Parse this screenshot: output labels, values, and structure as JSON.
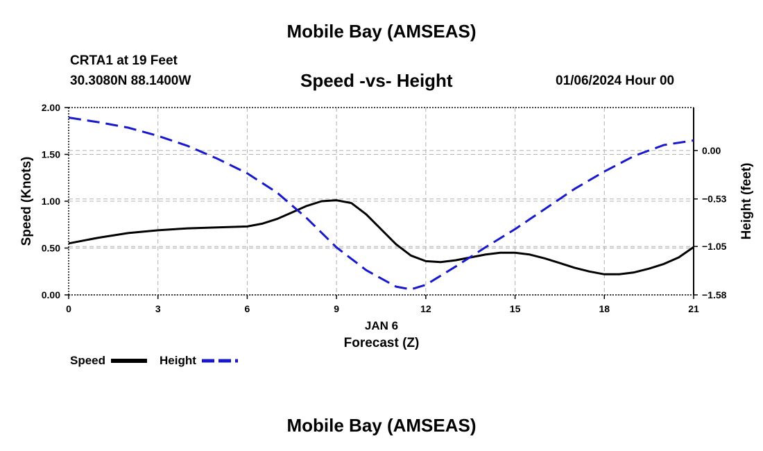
{
  "header": {
    "title": "Mobile Bay (AMSEAS)",
    "station": "CRTA1 at 19 Feet",
    "coords": "30.3080N  88.1400W",
    "subtitle": "Speed -vs- Height",
    "datetime": "01/06/2024 Hour 00"
  },
  "footer": {
    "title": "Mobile Bay (AMSEAS)"
  },
  "colors": {
    "speed": "#000000",
    "height": "#1818cc",
    "grid": "#b0b0b0"
  },
  "chart_data": {
    "type": "line",
    "title": "Speed -vs- Height",
    "xlabel_date": "JAN 6",
    "xlabel": "Forecast (Z)",
    "ylabel_left": "Speed (Knots)",
    "ylabel_right": "Height (feet)",
    "xlim": [
      0,
      21
    ],
    "ylim_left": [
      0,
      2.0
    ],
    "ylim_right": [
      -1.58,
      0.47
    ],
    "x_ticks": [
      0,
      3,
      6,
      9,
      12,
      15,
      18,
      21
    ],
    "x_tick_labels": [
      "0",
      "3",
      "6",
      "9",
      "12",
      "15",
      "18",
      "21"
    ],
    "y_left_ticks": [
      0,
      0.5,
      1.0,
      1.5,
      2.0
    ],
    "y_left_tick_labels": [
      "0.00",
      "0.50",
      "1.00",
      "1.50",
      "2.00"
    ],
    "y_right_ticks": [
      -1.58,
      -1.05,
      -0.53,
      0.0
    ],
    "y_right_tick_labels": [
      "−1.58",
      "−1.05",
      "−0.53",
      "0.00"
    ],
    "legend": [
      "Speed",
      "Height"
    ],
    "series": [
      {
        "name": "Speed",
        "axis": "left",
        "style": "solid",
        "x": [
          0,
          1,
          2,
          3,
          4,
          5,
          6,
          6.5,
          7,
          7.5,
          8,
          8.5,
          9,
          9.5,
          10,
          10.5,
          11,
          11.5,
          12,
          12.5,
          13,
          13.5,
          14,
          14.5,
          15,
          15.5,
          16,
          16.5,
          17,
          17.5,
          18,
          18.5,
          19,
          19.5,
          20,
          20.5,
          21
        ],
        "values": [
          0.55,
          0.61,
          0.66,
          0.69,
          0.71,
          0.72,
          0.73,
          0.76,
          0.81,
          0.88,
          0.95,
          1.0,
          1.01,
          0.98,
          0.86,
          0.7,
          0.54,
          0.42,
          0.36,
          0.35,
          0.37,
          0.4,
          0.43,
          0.45,
          0.45,
          0.43,
          0.39,
          0.34,
          0.29,
          0.25,
          0.22,
          0.22,
          0.24,
          0.28,
          0.33,
          0.4,
          0.51
        ]
      },
      {
        "name": "Height",
        "axis": "right",
        "style": "dashed",
        "x": [
          0,
          1,
          2,
          3,
          4,
          5,
          6,
          7,
          8,
          9,
          10,
          11,
          11.5,
          12,
          13,
          14,
          15,
          16,
          17,
          18,
          19,
          20,
          21
        ],
        "values": [
          0.36,
          0.31,
          0.25,
          0.16,
          0.05,
          -0.09,
          -0.25,
          -0.46,
          -0.74,
          -1.06,
          -1.31,
          -1.49,
          -1.52,
          -1.47,
          -1.27,
          -1.06,
          -0.86,
          -0.64,
          -0.42,
          -0.23,
          -0.06,
          0.06,
          0.11
        ]
      }
    ]
  }
}
